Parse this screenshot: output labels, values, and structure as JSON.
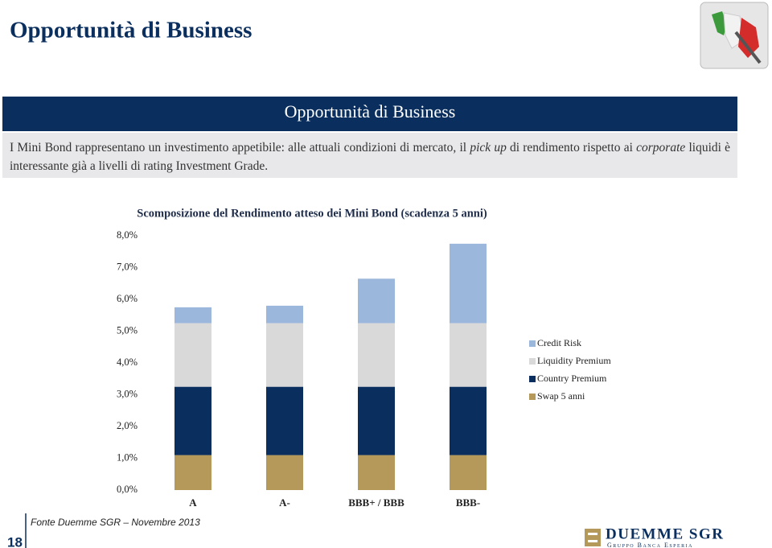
{
  "header": {
    "title": "Opportunità di Business"
  },
  "banner": {
    "title": "Opportunità di Business"
  },
  "intro": {
    "parts": [
      "I Mini Bond rappresentano un investimento appetibile: alle attuali condizioni di mercato, il ",
      "pick up",
      " di rendimento rispetto ai ",
      "corporate",
      " liquidi è interessante già a livelli di rating Investment Grade."
    ]
  },
  "chart_data": {
    "type": "stacked-bar",
    "title": "Scomposizione del Rendimento atteso dei Mini Bond (scadenza 5 anni)",
    "categories": [
      "A",
      "A-",
      "BBB+ / BBB",
      "BBB-"
    ],
    "series": [
      {
        "name": "Swap 5 anni",
        "color": "#b5995a",
        "values": [
          1.1,
          1.1,
          1.1,
          1.1
        ]
      },
      {
        "name": "Country Premium",
        "color": "#0a2f5e",
        "values": [
          2.15,
          2.15,
          2.15,
          2.15
        ]
      },
      {
        "name": "Liquidity Premium",
        "color": "#d9d9d9",
        "values": [
          2.0,
          2.0,
          2.0,
          2.0
        ]
      },
      {
        "name": "Credit Risk",
        "color": "#9bb7db",
        "values": [
          0.5,
          0.55,
          1.4,
          2.5
        ]
      }
    ],
    "ylim": [
      0,
      8
    ],
    "yticks": [
      {
        "value": 0,
        "label": "0,0%"
      },
      {
        "value": 1,
        "label": "1,0%"
      },
      {
        "value": 2,
        "label": "2,0%"
      },
      {
        "value": 3,
        "label": "3,0%"
      },
      {
        "value": 4,
        "label": "4,0%"
      },
      {
        "value": 5,
        "label": "5,0%"
      },
      {
        "value": 6,
        "label": "6,0%"
      },
      {
        "value": 7,
        "label": "7,0%"
      },
      {
        "value": 8,
        "label": "8,0%"
      }
    ],
    "grid": false,
    "legend": "right"
  },
  "footer": {
    "source": "Fonte Duemme SGR – Novembre 2013",
    "page_number": "18"
  },
  "logo": {
    "name": "DUEMME SGR",
    "group": "Gruppo Banca Esperia"
  }
}
